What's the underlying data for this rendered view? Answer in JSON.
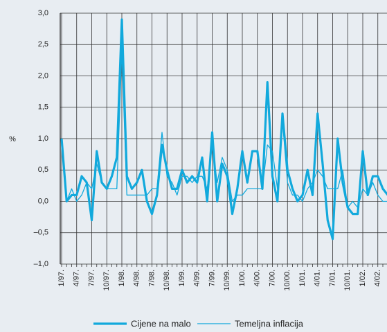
{
  "chart_data": {
    "type": "line",
    "ylabel": "%",
    "categories": [
      "1/97.",
      null,
      null,
      "4/97.",
      null,
      null,
      "7/97.",
      null,
      null,
      "10/97.",
      null,
      null,
      "1/98.",
      null,
      null,
      "4/98.",
      null,
      null,
      "7/98.",
      null,
      null,
      "10/98.",
      null,
      null,
      "1/99.",
      null,
      null,
      "4/99.",
      null,
      null,
      "7/99.",
      null,
      null,
      "10/99.",
      null,
      null,
      "1/00.",
      null,
      null,
      "4/00.",
      null,
      null,
      "7/00.",
      null,
      null,
      "10/00.",
      null,
      null,
      "1/01.",
      null,
      null,
      "4/01.",
      null,
      null,
      "7/01.",
      null,
      null,
      "10/01.",
      null,
      null,
      "1/02.",
      null,
      null,
      "4/02.",
      null,
      null
    ],
    "series": [
      {
        "name": "Cijene na malo",
        "color": "#12a9dc",
        "width": 3.2,
        "values": [
          1.0,
          0.0,
          0.1,
          0.1,
          0.4,
          0.3,
          -0.3,
          0.8,
          0.3,
          0.2,
          0.4,
          0.7,
          2.9,
          0.4,
          0.2,
          0.3,
          0.5,
          0.0,
          -0.2,
          0.1,
          0.9,
          0.5,
          0.2,
          0.2,
          0.5,
          0.3,
          0.4,
          0.3,
          0.7,
          0.0,
          1.1,
          0.0,
          0.6,
          0.4,
          -0.2,
          0.2,
          0.8,
          0.3,
          0.8,
          0.8,
          0.2,
          1.9,
          0.4,
          0.0,
          1.4,
          0.5,
          0.2,
          0.0,
          0.1,
          0.5,
          0.1,
          1.4,
          0.6,
          -0.3,
          -0.6,
          1.0,
          0.3,
          -0.1,
          -0.2,
          -0.2,
          0.8,
          0.1,
          0.4,
          0.4,
          0.2,
          0.1
        ]
      },
      {
        "name": "Temeljna inflacija",
        "color": "#12a9dc",
        "width": 1.3,
        "values": [
          0.9,
          0.0,
          0.2,
          0.0,
          0.1,
          0.3,
          0.2,
          0.6,
          0.3,
          0.2,
          0.2,
          0.2,
          2.4,
          0.1,
          0.1,
          0.1,
          0.1,
          0.1,
          0.2,
          0.2,
          1.1,
          0.4,
          0.3,
          0.1,
          0.4,
          0.4,
          0.3,
          0.4,
          0.4,
          0.2,
          0.9,
          0.3,
          0.7,
          0.5,
          0.0,
          0.1,
          0.1,
          0.2,
          0.2,
          0.2,
          0.2,
          0.9,
          0.8,
          0.2,
          1.3,
          0.3,
          0.1,
          0.1,
          0.0,
          0.2,
          0.3,
          0.5,
          0.4,
          0.2,
          0.2,
          0.2,
          0.5,
          -0.1,
          0.0,
          -0.1,
          0.2,
          0.1,
          0.3,
          0.1,
          0.0,
          0.0
        ]
      }
    ],
    "ylim": [
      -1.0,
      3.0
    ],
    "yticks": [
      {
        "value": -1.0,
        "label": "–1,0"
      },
      {
        "value": -0.5,
        "label": "–0,5"
      },
      {
        "value": 0.0,
        "label": "0,0"
      },
      {
        "value": 0.5,
        "label": "0,5"
      },
      {
        "value": 1.0,
        "label": "1,0"
      },
      {
        "value": 1.5,
        "label": "1,5"
      },
      {
        "value": 2.0,
        "label": "2,0"
      },
      {
        "value": 2.5,
        "label": "2,5"
      },
      {
        "value": 3.0,
        "label": "3,0"
      }
    ],
    "grid": true
  }
}
